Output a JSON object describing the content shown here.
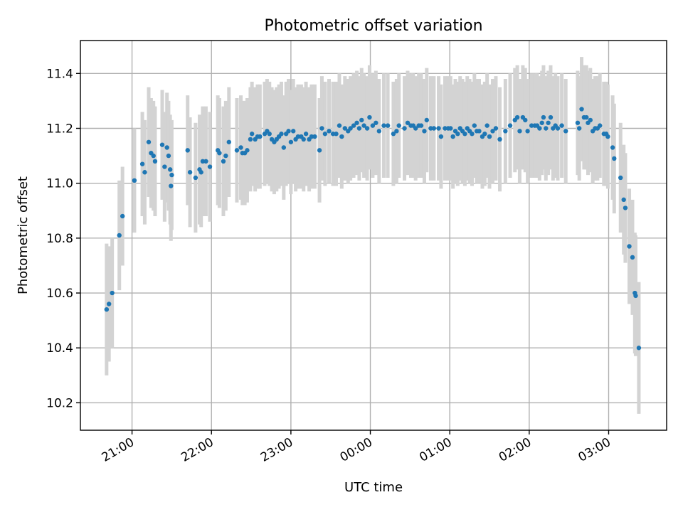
{
  "chart_data": {
    "type": "scatter",
    "title": "Photometric offset variation",
    "xlabel": "UTC time",
    "ylabel": "Photometric offset",
    "x_axis": "time (UTC), hours relative to 00:00; negative = previous evening",
    "xlim": [
      -3.65,
      3.73
    ],
    "ylim": [
      10.1,
      11.52
    ],
    "grid": true,
    "x_ticks": [
      {
        "value": -3,
        "label": "21:00"
      },
      {
        "value": -2,
        "label": "22:00"
      },
      {
        "value": -1,
        "label": "23:00"
      },
      {
        "value": 0,
        "label": "00:00"
      },
      {
        "value": 1,
        "label": "01:00"
      },
      {
        "value": 2,
        "label": "02:00"
      },
      {
        "value": 3,
        "label": "03:00"
      }
    ],
    "y_ticks": [
      {
        "value": 10.2,
        "label": "10.2"
      },
      {
        "value": 10.4,
        "label": "10.4"
      },
      {
        "value": 10.6,
        "label": "10.6"
      },
      {
        "value": 10.8,
        "label": "10.8"
      },
      {
        "value": 11.0,
        "label": "11.0"
      },
      {
        "value": 11.2,
        "label": "11.2"
      },
      {
        "value": 11.4,
        "label": "11.4"
      }
    ],
    "colors": {
      "points": "#1f77b4",
      "errorbars": "#d3d3d3"
    },
    "series": [
      {
        "points": [
          [
            -3.32,
            10.54,
            0.24
          ],
          [
            -3.29,
            10.56,
            0.21
          ],
          [
            -3.25,
            10.6,
            0.2
          ],
          [
            -3.16,
            10.81,
            0.2
          ],
          [
            -3.12,
            10.88,
            0.18
          ],
          [
            -2.97,
            11.01,
            0.19
          ],
          [
            -2.87,
            11.07,
            0.19
          ],
          [
            -2.84,
            11.04,
            0.19
          ],
          [
            -2.79,
            11.15,
            0.2
          ],
          [
            -2.76,
            11.11,
            0.2
          ],
          [
            -2.73,
            11.1,
            0.2
          ],
          [
            -2.71,
            11.08,
            0.2
          ],
          [
            -2.62,
            11.14,
            0.2
          ],
          [
            -2.59,
            11.06,
            0.2
          ],
          [
            -2.56,
            11.13,
            0.2
          ],
          [
            -2.54,
            11.1,
            0.2
          ],
          [
            -2.52,
            11.05,
            0.2
          ],
          [
            -2.51,
            10.99,
            0.2
          ],
          [
            -2.5,
            11.03,
            0.2
          ],
          [
            -2.3,
            11.12,
            0.2
          ],
          [
            -2.27,
            11.04,
            0.2
          ],
          [
            -2.2,
            11.02,
            0.2
          ],
          [
            -2.15,
            11.05,
            0.2
          ],
          [
            -2.13,
            11.04,
            0.2
          ],
          [
            -2.11,
            11.08,
            0.2
          ],
          [
            -2.07,
            11.08,
            0.2
          ],
          [
            -2.02,
            11.06,
            0.2
          ],
          [
            -1.92,
            11.12,
            0.2
          ],
          [
            -1.9,
            11.11,
            0.2
          ],
          [
            -1.85,
            11.08,
            0.2
          ],
          [
            -1.82,
            11.1,
            0.2
          ],
          [
            -1.78,
            11.15,
            0.2
          ],
          [
            -1.68,
            11.12,
            0.19
          ],
          [
            -1.63,
            11.13,
            0.19
          ],
          [
            -1.61,
            11.11,
            0.19
          ],
          [
            -1.58,
            11.11,
            0.19
          ],
          [
            -1.55,
            11.12,
            0.19
          ],
          [
            -1.51,
            11.16,
            0.19
          ],
          [
            -1.49,
            11.18,
            0.19
          ],
          [
            -1.45,
            11.16,
            0.19
          ],
          [
            -1.42,
            11.17,
            0.19
          ],
          [
            -1.39,
            11.17,
            0.19
          ],
          [
            -1.33,
            11.18,
            0.19
          ],
          [
            -1.3,
            11.19,
            0.19
          ],
          [
            -1.27,
            11.18,
            0.19
          ],
          [
            -1.24,
            11.16,
            0.19
          ],
          [
            -1.21,
            11.15,
            0.19
          ],
          [
            -1.18,
            11.16,
            0.19
          ],
          [
            -1.15,
            11.17,
            0.19
          ],
          [
            -1.12,
            11.18,
            0.19
          ],
          [
            -1.09,
            11.13,
            0.19
          ],
          [
            -1.06,
            11.18,
            0.19
          ],
          [
            -1.03,
            11.19,
            0.19
          ],
          [
            -1.0,
            11.15,
            0.19
          ],
          [
            -0.97,
            11.19,
            0.19
          ],
          [
            -0.94,
            11.16,
            0.19
          ],
          [
            -0.91,
            11.17,
            0.19
          ],
          [
            -0.87,
            11.17,
            0.19
          ],
          [
            -0.84,
            11.16,
            0.19
          ],
          [
            -0.81,
            11.18,
            0.19
          ],
          [
            -0.77,
            11.16,
            0.19
          ],
          [
            -0.74,
            11.17,
            0.19
          ],
          [
            -0.7,
            11.17,
            0.19
          ],
          [
            -0.64,
            11.12,
            0.19
          ],
          [
            -0.61,
            11.2,
            0.19
          ],
          [
            -0.57,
            11.18,
            0.19
          ],
          [
            -0.52,
            11.19,
            0.19
          ],
          [
            -0.47,
            11.18,
            0.19
          ],
          [
            -0.43,
            11.18,
            0.19
          ],
          [
            -0.39,
            11.21,
            0.19
          ],
          [
            -0.36,
            11.17,
            0.19
          ],
          [
            -0.32,
            11.2,
            0.19
          ],
          [
            -0.28,
            11.19,
            0.19
          ],
          [
            -0.25,
            11.2,
            0.19
          ],
          [
            -0.21,
            11.21,
            0.19
          ],
          [
            -0.17,
            11.22,
            0.19
          ],
          [
            -0.14,
            11.2,
            0.19
          ],
          [
            -0.11,
            11.23,
            0.19
          ],
          [
            -0.08,
            11.21,
            0.19
          ],
          [
            -0.04,
            11.2,
            0.19
          ],
          [
            -0.01,
            11.24,
            0.19
          ],
          [
            0.03,
            11.21,
            0.19
          ],
          [
            0.07,
            11.22,
            0.19
          ],
          [
            0.11,
            11.19,
            0.19
          ],
          [
            0.17,
            11.21,
            0.19
          ],
          [
            0.22,
            11.21,
            0.19
          ],
          [
            0.29,
            11.18,
            0.19
          ],
          [
            0.33,
            11.19,
            0.19
          ],
          [
            0.36,
            11.21,
            0.19
          ],
          [
            0.43,
            11.2,
            0.19
          ],
          [
            0.47,
            11.22,
            0.19
          ],
          [
            0.51,
            11.21,
            0.19
          ],
          [
            0.54,
            11.21,
            0.19
          ],
          [
            0.57,
            11.2,
            0.19
          ],
          [
            0.61,
            11.21,
            0.19
          ],
          [
            0.64,
            11.21,
            0.19
          ],
          [
            0.68,
            11.19,
            0.19
          ],
          [
            0.71,
            11.23,
            0.19
          ],
          [
            0.76,
            11.2,
            0.19
          ],
          [
            0.8,
            11.2,
            0.19
          ],
          [
            0.86,
            11.2,
            0.19
          ],
          [
            0.89,
            11.17,
            0.19
          ],
          [
            0.94,
            11.2,
            0.19
          ],
          [
            0.98,
            11.2,
            0.19
          ],
          [
            1.01,
            11.2,
            0.19
          ],
          [
            1.04,
            11.17,
            0.19
          ],
          [
            1.07,
            11.19,
            0.19
          ],
          [
            1.1,
            11.18,
            0.19
          ],
          [
            1.13,
            11.2,
            0.19
          ],
          [
            1.16,
            11.19,
            0.19
          ],
          [
            1.19,
            11.18,
            0.19
          ],
          [
            1.22,
            11.2,
            0.19
          ],
          [
            1.25,
            11.19,
            0.19
          ],
          [
            1.28,
            11.18,
            0.19
          ],
          [
            1.31,
            11.21,
            0.19
          ],
          [
            1.34,
            11.19,
            0.19
          ],
          [
            1.37,
            11.19,
            0.19
          ],
          [
            1.41,
            11.17,
            0.19
          ],
          [
            1.44,
            11.18,
            0.19
          ],
          [
            1.47,
            11.21,
            0.19
          ],
          [
            1.5,
            11.17,
            0.19
          ],
          [
            1.54,
            11.19,
            0.19
          ],
          [
            1.58,
            11.2,
            0.19
          ],
          [
            1.63,
            11.16,
            0.19
          ],
          [
            1.7,
            11.19,
            0.19
          ],
          [
            1.76,
            11.21,
            0.19
          ],
          [
            1.82,
            11.23,
            0.19
          ],
          [
            1.85,
            11.24,
            0.19
          ],
          [
            1.88,
            11.19,
            0.19
          ],
          [
            1.92,
            11.24,
            0.19
          ],
          [
            1.95,
            11.23,
            0.19
          ],
          [
            1.98,
            11.19,
            0.19
          ],
          [
            2.03,
            11.21,
            0.19
          ],
          [
            2.07,
            11.21,
            0.19
          ],
          [
            2.1,
            11.21,
            0.19
          ],
          [
            2.13,
            11.2,
            0.19
          ],
          [
            2.16,
            11.22,
            0.19
          ],
          [
            2.18,
            11.24,
            0.19
          ],
          [
            2.21,
            11.2,
            0.19
          ],
          [
            2.24,
            11.22,
            0.19
          ],
          [
            2.27,
            11.24,
            0.19
          ],
          [
            2.3,
            11.2,
            0.19
          ],
          [
            2.33,
            11.21,
            0.19
          ],
          [
            2.36,
            11.2,
            0.19
          ],
          [
            2.41,
            11.21,
            0.19
          ],
          [
            2.46,
            11.19,
            0.19
          ],
          [
            2.61,
            11.22,
            0.19
          ],
          [
            2.63,
            11.2,
            0.19
          ],
          [
            2.66,
            11.27,
            0.19
          ],
          [
            2.69,
            11.24,
            0.19
          ],
          [
            2.72,
            11.24,
            0.19
          ],
          [
            2.74,
            11.22,
            0.19
          ],
          [
            2.77,
            11.23,
            0.19
          ],
          [
            2.8,
            11.19,
            0.19
          ],
          [
            2.83,
            11.2,
            0.19
          ],
          [
            2.86,
            11.2,
            0.19
          ],
          [
            2.89,
            11.21,
            0.19
          ],
          [
            2.94,
            11.18,
            0.19
          ],
          [
            2.97,
            11.18,
            0.19
          ],
          [
            2.99,
            11.17,
            0.19
          ],
          [
            3.05,
            11.13,
            0.19
          ],
          [
            3.07,
            11.09,
            0.2
          ],
          [
            3.15,
            11.02,
            0.2
          ],
          [
            3.19,
            10.94,
            0.2
          ],
          [
            3.21,
            10.91,
            0.2
          ],
          [
            3.26,
            10.77,
            0.21
          ],
          [
            3.3,
            10.73,
            0.21
          ],
          [
            3.33,
            10.6,
            0.22
          ],
          [
            3.34,
            10.59,
            0.22
          ],
          [
            3.38,
            10.4,
            0.24
          ]
        ]
      }
    ]
  }
}
